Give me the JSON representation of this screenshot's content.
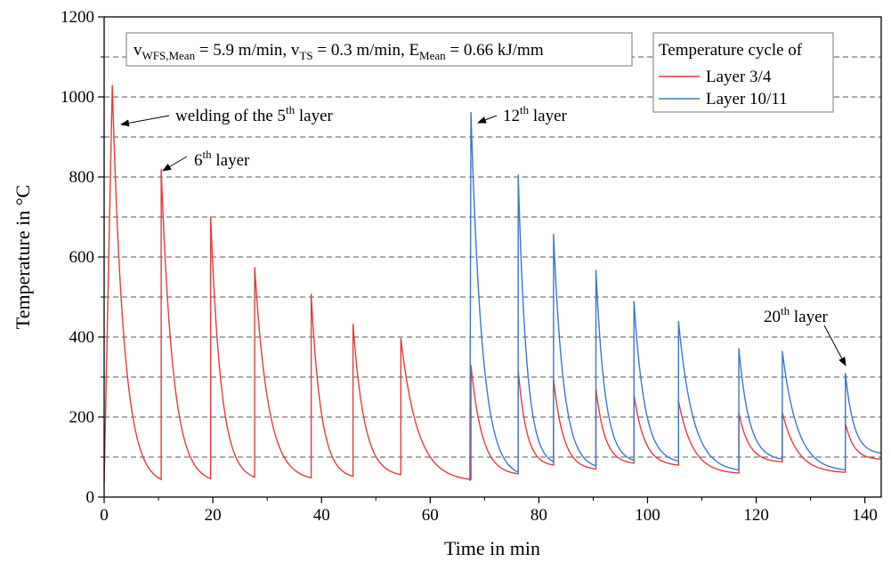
{
  "chart_data": {
    "type": "line",
    "xlabel": "Time in min",
    "ylabel": "Temperature in °C",
    "xlim": [
      0,
      143
    ],
    "ylim": [
      0,
      1200
    ],
    "x_ticks": [
      "0",
      "20",
      "40",
      "60",
      "80",
      "100",
      "120",
      "140"
    ],
    "y_ticks": [
      "0",
      "200",
      "400",
      "600",
      "800",
      "1000",
      "1200"
    ],
    "grid": "dashed horizontal lines at 100-unit intervals",
    "params_box": {
      "v_wfs_main": "v",
      "v_wfs_sub": "WFS,Mean",
      "v_wfs_value": " = 5.9 m/min, v",
      "v_ts_sub": "TS",
      "v_ts_value": " = 0.3 m/min, E",
      "e_sub": "Mean",
      "e_value": " = 0.66 kJ/mm"
    },
    "legend": {
      "title": "Temperature cycle of",
      "position": "top-right"
    },
    "series": [
      {
        "name": "Layer 3/4",
        "color": "#e03c3c",
        "peaks": [
          {
            "t": 1.5,
            "peak": 1030,
            "end_t": 10.5,
            "end_val": 44
          },
          {
            "t": 10.5,
            "peak": 820,
            "end_t": 19.6,
            "end_val": 46
          },
          {
            "t": 19.6,
            "peak": 700,
            "end_t": 27.7,
            "end_val": 50
          },
          {
            "t": 27.7,
            "peak": 575,
            "end_t": 38.1,
            "end_val": 48
          },
          {
            "t": 38.1,
            "peak": 508,
            "end_t": 45.8,
            "end_val": 52
          },
          {
            "t": 45.8,
            "peak": 433,
            "end_t": 54.6,
            "end_val": 56
          },
          {
            "t": 54.6,
            "peak": 397,
            "end_t": 67.5,
            "end_val": 44
          },
          {
            "t": 67.5,
            "peak": 330,
            "end_t": 76.2,
            "end_val": 58
          },
          {
            "t": 76.2,
            "peak": 318,
            "end_t": 82.7,
            "end_val": 80
          },
          {
            "t": 82.7,
            "peak": 295,
            "end_t": 90.5,
            "end_val": 70
          },
          {
            "t": 90.5,
            "peak": 272,
            "end_t": 97.5,
            "end_val": 85
          },
          {
            "t": 97.5,
            "peak": 257,
            "end_t": 105.7,
            "end_val": 80
          },
          {
            "t": 105.7,
            "peak": 240,
            "end_t": 116.8,
            "end_val": 60
          },
          {
            "t": 116.8,
            "peak": 210,
            "end_t": 124.8,
            "end_val": 88
          },
          {
            "t": 124.8,
            "peak": 212,
            "end_t": 136.4,
            "end_val": 62
          },
          {
            "t": 136.4,
            "peak": 185,
            "end_t": 143.0,
            "end_val": 95
          }
        ],
        "start": {
          "t": 0,
          "val": 38
        }
      },
      {
        "name": "Layer 10/11",
        "color": "#3a78c8",
        "peaks": [
          {
            "t": 67.5,
            "peak": 962,
            "end_t": 76.2,
            "end_val": 62
          },
          {
            "t": 76.2,
            "peak": 806,
            "end_t": 82.7,
            "end_val": 88
          },
          {
            "t": 82.7,
            "peak": 658,
            "end_t": 90.5,
            "end_val": 78
          },
          {
            "t": 90.5,
            "peak": 568,
            "end_t": 97.5,
            "end_val": 92
          },
          {
            "t": 97.5,
            "peak": 490,
            "end_t": 105.7,
            "end_val": 90
          },
          {
            "t": 105.7,
            "peak": 440,
            "end_t": 116.8,
            "end_val": 68
          },
          {
            "t": 116.8,
            "peak": 372,
            "end_t": 124.8,
            "end_val": 95
          },
          {
            "t": 124.8,
            "peak": 365,
            "end_t": 136.4,
            "end_val": 68
          },
          {
            "t": 136.4,
            "peak": 310,
            "end_t": 143.0,
            "end_val": 110
          }
        ],
        "start": {
          "t": 67.3,
          "val": 40
        }
      }
    ],
    "annotations": {
      "a1_text": "welding of the 5",
      "a1_sup": "th",
      "a1_tail": " layer",
      "a2_text": "6",
      "a2_sup": "th",
      "a2_tail": " layer",
      "a3_text": "12",
      "a3_sup": "th",
      "a3_tail": " layer",
      "a4_text": "20",
      "a4_sup": "th",
      "a4_tail": " layer"
    }
  }
}
